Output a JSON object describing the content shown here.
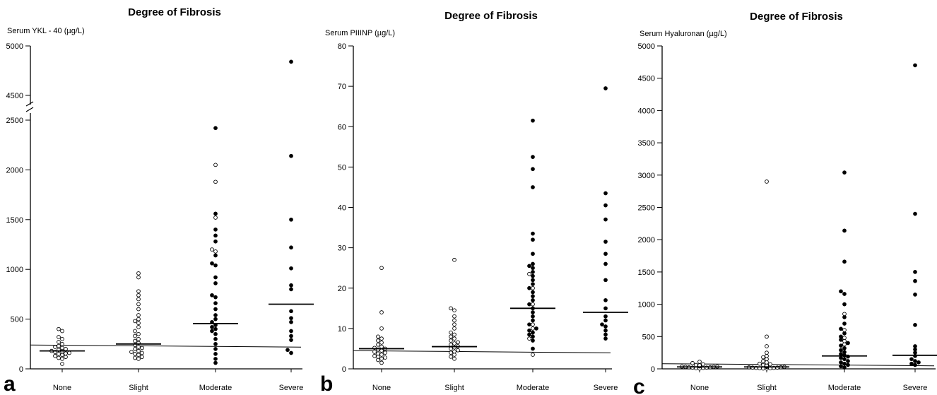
{
  "chart_data": [
    {
      "type": "scatter",
      "panel_label": "a",
      "title": "Degree of Fibrosis",
      "ylabel": "Serum YKL - 40 (µg/L)",
      "categories": [
        "None",
        "Slight",
        "Moderate",
        "Severe"
      ],
      "yticks": [
        0,
        500,
        1000,
        1500,
        2000,
        2500,
        4500,
        5000
      ],
      "axis_break": [
        2500,
        4500
      ],
      "reference_line": 240,
      "medians": [
        180,
        250,
        455,
        650
      ],
      "open_points": [
        [
          50,
          100,
          110,
          120,
          130,
          140,
          150,
          155,
          160,
          170,
          175,
          180,
          190,
          200,
          210,
          220,
          230,
          250,
          270,
          300,
          320,
          380,
          400
        ],
        [
          100,
          110,
          120,
          140,
          150,
          160,
          170,
          180,
          200,
          210,
          220,
          240,
          260,
          280,
          300,
          330,
          350,
          380,
          420,
          460,
          480,
          500,
          540,
          600,
          650,
          700,
          740,
          780,
          920,
          960
        ],
        [
          1180,
          1200,
          1520,
          1880,
          2050
        ],
        []
      ],
      "filled_points": [
        [],
        [],
        [
          60,
          100,
          150,
          200,
          250,
          300,
          350,
          380,
          400,
          420,
          440,
          470,
          500,
          540,
          600,
          660,
          720,
          740,
          860,
          920,
          1040,
          1060,
          1140,
          1280,
          1340,
          1400,
          1560,
          2420
        ],
        [
          160,
          190,
          290,
          330,
          380,
          470,
          510,
          580,
          800,
          840,
          1010,
          1220,
          1500,
          2140,
          4840
        ]
      ]
    },
    {
      "type": "scatter",
      "panel_label": "b",
      "title": "Degree of Fibrosis",
      "ylabel": "Serum PIIINP (µg/L)",
      "categories": [
        "None",
        "Slight",
        "Moderate",
        "Severe"
      ],
      "yticks": [
        0,
        10,
        20,
        30,
        40,
        50,
        60,
        70,
        80
      ],
      "reference_line": 4.5,
      "medians": [
        5,
        5.5,
        15,
        14
      ],
      "open_points": [
        [
          1.5,
          2.2,
          2.5,
          2.8,
          3,
          3.2,
          3.5,
          3.8,
          4,
          4.2,
          4.5,
          4.8,
          5,
          5.2,
          5.5,
          6,
          6.5,
          7,
          7.5,
          8,
          10,
          14,
          25
        ],
        [
          2.5,
          3,
          3.5,
          4,
          4.3,
          4.6,
          5,
          5.3,
          5.6,
          6,
          6.3,
          6.6,
          7,
          7.5,
          8,
          8.5,
          9,
          10,
          11,
          12,
          13,
          14.5,
          15,
          27
        ],
        [
          3.5,
          7.5,
          10,
          11,
          16,
          20,
          23.5
        ],
        []
      ],
      "filled_points": [
        [],
        [],
        [
          5,
          7,
          8,
          8.5,
          9,
          9.5,
          10,
          11,
          12,
          13,
          14,
          15,
          16,
          17,
          18,
          19,
          20,
          21,
          22,
          23,
          24,
          25,
          25.5,
          26,
          28.5,
          32,
          33.5,
          45,
          49.5,
          52.5,
          61.5
        ],
        [
          7.5,
          8.5,
          9.5,
          10.5,
          11,
          12,
          13,
          15,
          17,
          22,
          26,
          28.5,
          31.5,
          37,
          40.5,
          43.5,
          69.5
        ]
      ]
    },
    {
      "type": "scatter",
      "panel_label": "c",
      "title": "Degree of Fibrosis",
      "ylabel": "Serum Hyaluronan (µg/L)",
      "categories": [
        "None",
        "Slight",
        "Moderate",
        "Severe"
      ],
      "yticks": [
        0,
        500,
        1000,
        1500,
        2000,
        2500,
        3000,
        3500,
        4000,
        4500,
        5000
      ],
      "reference_line": 80,
      "medians": [
        30,
        30,
        200,
        210
      ],
      "open_points": [
        [
          5,
          10,
          15,
          20,
          20,
          25,
          25,
          30,
          30,
          35,
          35,
          40,
          40,
          45,
          50,
          50,
          55,
          60,
          70,
          90,
          110
        ],
        [
          5,
          5,
          10,
          10,
          15,
          15,
          20,
          20,
          25,
          25,
          30,
          30,
          35,
          40,
          45,
          50,
          60,
          70,
          80,
          100,
          120,
          150,
          180,
          200,
          250,
          350,
          500,
          2900
        ],
        [
          380,
          430,
          480,
          600,
          850
        ],
        []
      ],
      "filled_points": [
        [],
        [],
        [
          20,
          40,
          60,
          80,
          100,
          120,
          150,
          170,
          190,
          210,
          230,
          260,
          290,
          320,
          360,
          400,
          450,
          500,
          550,
          620,
          700,
          800,
          1000,
          1160,
          1200,
          1660,
          2140,
          3040
        ],
        [
          60,
          80,
          100,
          120,
          150,
          200,
          250,
          300,
          350,
          680,
          1150,
          1360,
          1500,
          2400,
          4700
        ]
      ]
    }
  ]
}
